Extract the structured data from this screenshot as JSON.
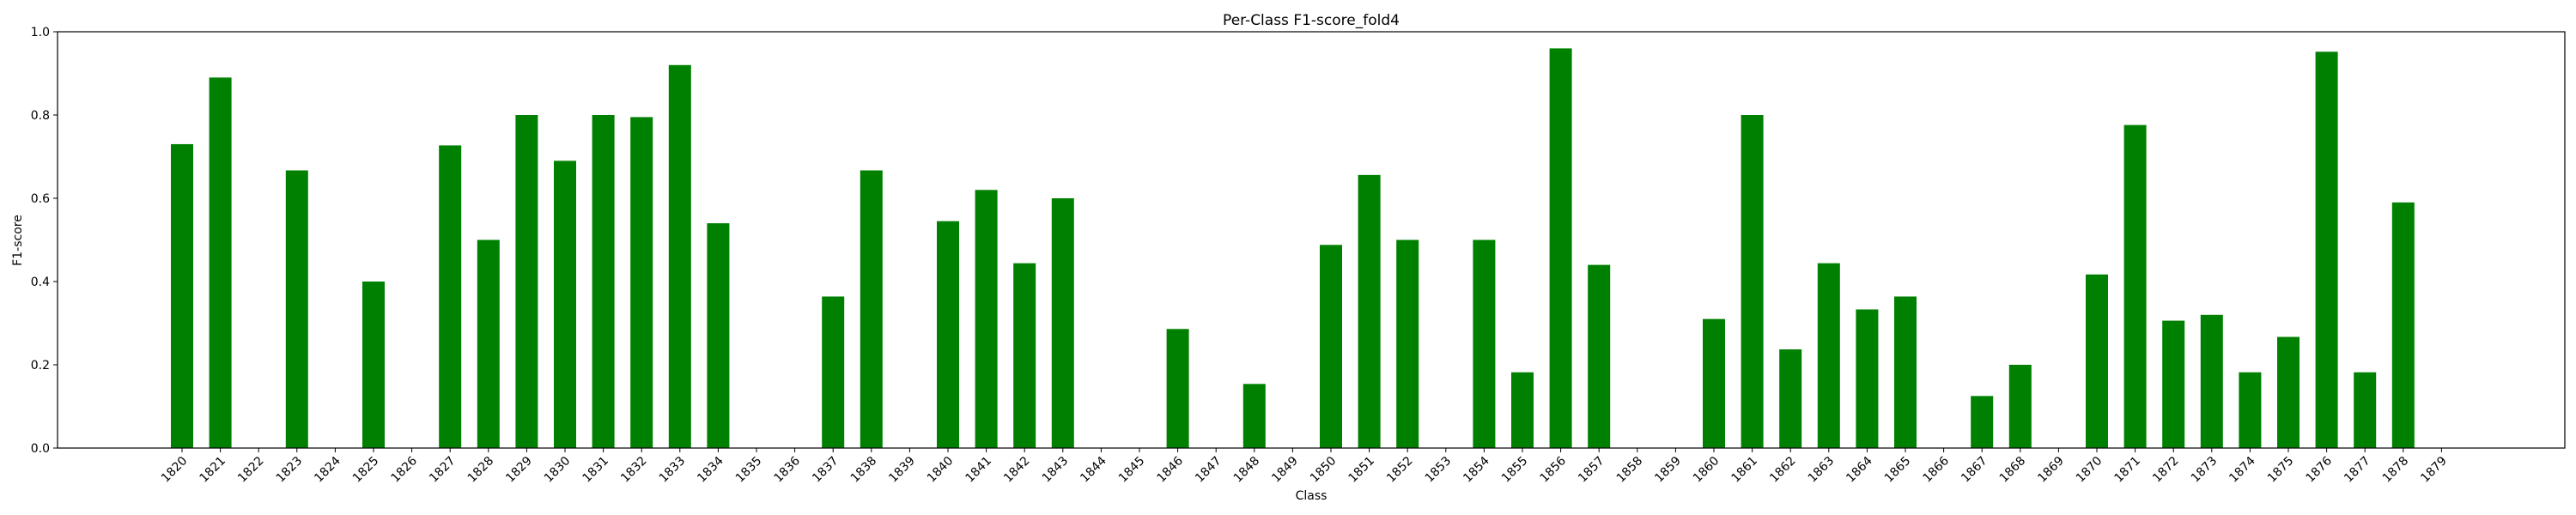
{
  "chart_data": {
    "type": "bar",
    "title": "Per-Class F1-score_fold4",
    "xlabel": "Class",
    "ylabel": "F1-score",
    "ylim": [
      0,
      1.0
    ],
    "yticks": [
      "0.0",
      "0.2",
      "0.4",
      "0.6",
      "0.8",
      "1.0"
    ],
    "bar_color": "#008000",
    "grid": false,
    "categories": [
      "1820",
      "1821",
      "1822",
      "1823",
      "1824",
      "1825",
      "1826",
      "1827",
      "1828",
      "1829",
      "1830",
      "1831",
      "1832",
      "1833",
      "1834",
      "1835",
      "1836",
      "1837",
      "1838",
      "1839",
      "1840",
      "1841",
      "1842",
      "1843",
      "1844",
      "1845",
      "1846",
      "1847",
      "1848",
      "1849",
      "1850",
      "1851",
      "1852",
      "1853",
      "1854",
      "1855",
      "1856",
      "1857",
      "1858",
      "1859",
      "1860",
      "1861",
      "1862",
      "1863",
      "1864",
      "1865",
      "1866",
      "1867",
      "1868",
      "1869",
      "1870",
      "1871",
      "1872",
      "1873",
      "1874",
      "1875",
      "1876",
      "1877",
      "1878",
      "1879"
    ],
    "values": [
      0.73,
      0.89,
      0,
      0.667,
      0,
      0.4,
      0,
      0.727,
      0.5,
      0.8,
      0.69,
      0.8,
      0.795,
      0.92,
      0.54,
      0,
      0,
      0.364,
      0.667,
      0,
      0.545,
      0.62,
      0.444,
      0.6,
      0,
      0,
      0.286,
      0,
      0.154,
      0,
      0.488,
      0.656,
      0.5,
      0,
      0.5,
      0.182,
      0.96,
      0.44,
      0,
      0,
      0.31,
      0.8,
      0.237,
      0.444,
      0.333,
      0.364,
      0,
      0.125,
      0.2,
      0,
      0.417,
      0.776,
      0.306,
      0.32,
      0.182,
      0.267,
      0.952,
      0.182,
      0.59,
      0
    ]
  }
}
